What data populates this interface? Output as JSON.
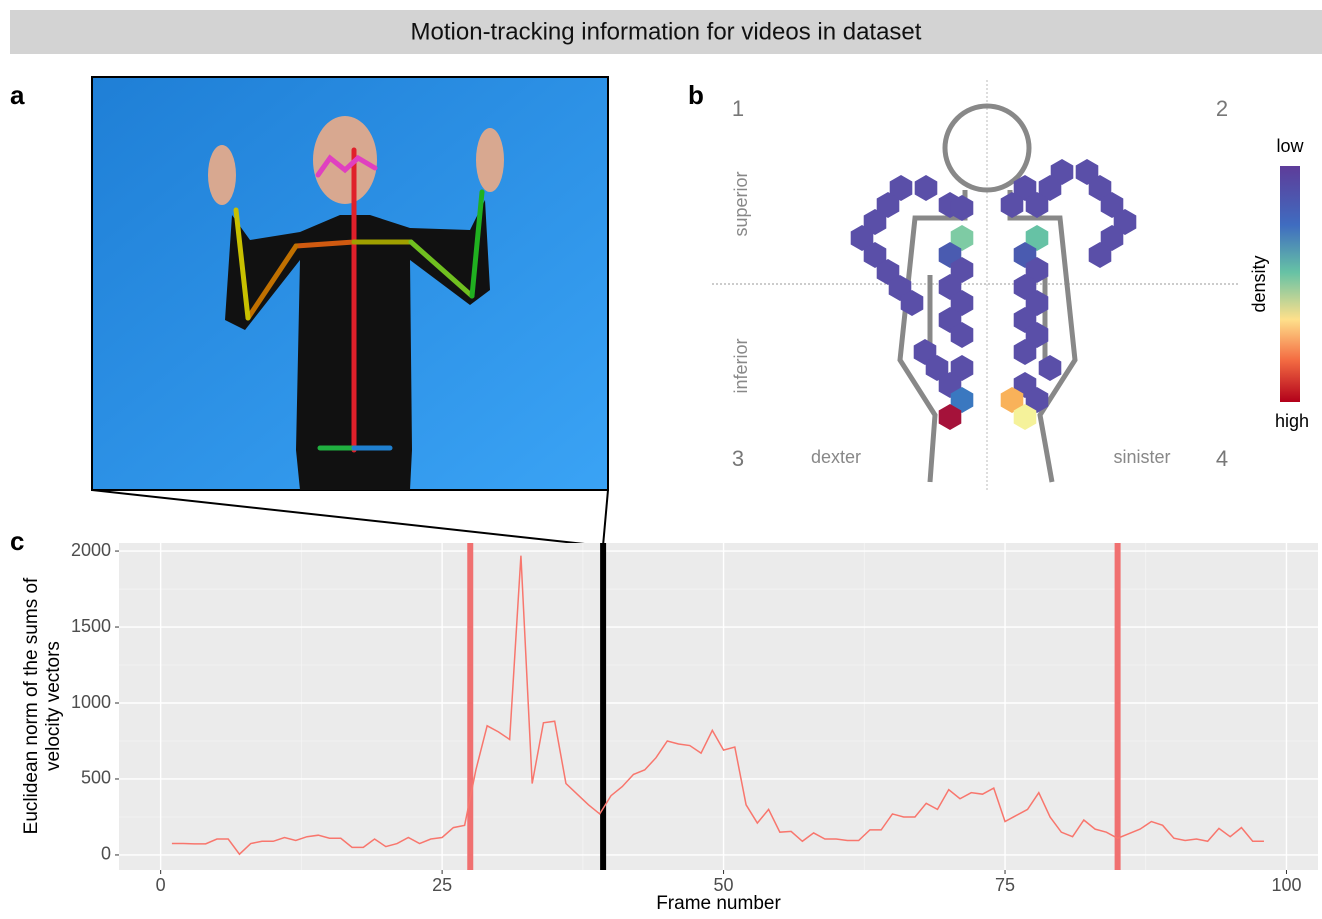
{
  "title": "Motion-tracking information for videos in dataset",
  "panels": {
    "a": {
      "label": "a"
    },
    "b": {
      "label": "b",
      "quadrants": [
        "1",
        "2",
        "3",
        "4"
      ],
      "vertical": [
        "superior",
        "inferior"
      ],
      "horizontal": [
        "dexter",
        "sinister"
      ],
      "legend": {
        "title": "density",
        "low": "low",
        "high": "high"
      }
    },
    "c": {
      "label": "c"
    }
  },
  "chart_data": {
    "type": "line",
    "x": [
      1,
      2,
      3,
      4,
      5,
      6,
      7,
      8,
      9,
      10,
      11,
      12,
      13,
      14,
      15,
      16,
      17,
      18,
      19,
      20,
      21,
      22,
      23,
      24,
      25,
      26,
      27,
      28,
      29,
      30,
      31,
      32,
      33,
      34,
      35,
      36,
      37,
      38,
      39,
      40,
      41,
      42,
      43,
      44,
      45,
      46,
      47,
      48,
      49,
      50,
      51,
      52,
      53,
      54,
      55,
      56,
      57,
      58,
      59,
      60,
      61,
      62,
      63,
      64,
      65,
      66,
      67,
      68,
      69,
      70,
      71,
      72,
      73,
      74,
      75,
      76,
      77,
      78,
      79,
      80,
      81,
      82,
      83,
      84,
      85,
      86,
      87,
      88,
      89,
      90,
      91,
      92,
      93,
      94,
      95,
      96,
      97,
      98
    ],
    "values": [
      75,
      75,
      73,
      73,
      105,
      105,
      5,
      75,
      90,
      90,
      115,
      95,
      120,
      130,
      110,
      110,
      50,
      50,
      105,
      55,
      75,
      115,
      75,
      105,
      115,
      180,
      195,
      560,
      850,
      810,
      760,
      1970,
      470,
      870,
      880,
      470,
      400,
      330,
      270,
      390,
      450,
      530,
      560,
      640,
      750,
      730,
      720,
      670,
      820,
      690,
      710,
      330,
      210,
      300,
      150,
      155,
      90,
      145,
      105,
      105,
      95,
      95,
      165,
      165,
      270,
      250,
      250,
      340,
      300,
      430,
      370,
      410,
      400,
      440,
      220,
      260,
      300,
      410,
      250,
      150,
      120,
      230,
      170,
      150,
      110,
      140,
      170,
      220,
      195,
      110,
      95,
      105,
      90,
      175,
      120,
      180,
      90,
      90
    ],
    "color": "#f8766d",
    "xlim": [
      -3.7,
      102.8
    ],
    "ylim": [
      -99,
      2053
    ],
    "xticks": [
      0,
      25,
      50,
      75,
      100
    ],
    "yticks": [
      0,
      500,
      1000,
      1500,
      2000
    ],
    "xlabel": "Frame number",
    "ylabel": [
      "Euclidean norm of the sums of",
      "velocity vectors"
    ],
    "markers": [
      {
        "x": 27.5,
        "color": "#f07070"
      },
      {
        "x": 39.3,
        "color": "#000000"
      },
      {
        "x": 85,
        "color": "#f07070"
      }
    ],
    "grid": true
  }
}
